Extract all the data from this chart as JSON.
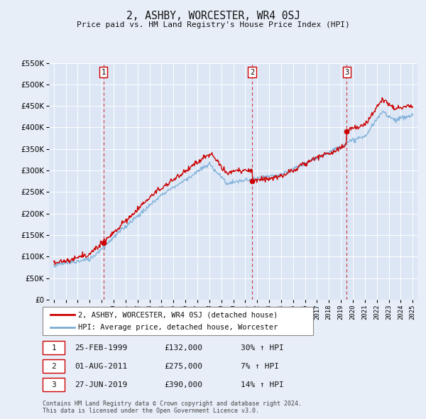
{
  "title": "2, ASHBY, WORCESTER, WR4 0SJ",
  "subtitle": "Price paid vs. HM Land Registry's House Price Index (HPI)",
  "background_color": "#e8eef8",
  "plot_bg_color": "#dce6f5",
  "line1_color": "#cc0000",
  "line2_color": "#7aaed6",
  "legend1": "2, ASHBY, WORCESTER, WR4 0SJ (detached house)",
  "legend2": "HPI: Average price, detached house, Worcester",
  "footer": "Contains HM Land Registry data © Crown copyright and database right 2024.\nThis data is licensed under the Open Government Licence v3.0.",
  "transactions": [
    {
      "num": 1,
      "date": "25-FEB-1999",
      "price": "£132,000",
      "hpi": "30% ↑ HPI",
      "year": 1999.15
    },
    {
      "num": 2,
      "date": "01-AUG-2011",
      "price": "£275,000",
      "hpi": "7% ↑ HPI",
      "year": 2011.58
    },
    {
      "num": 3,
      "date": "27-JUN-2019",
      "price": "£390,000",
      "hpi": "14% ↑ HPI",
      "year": 2019.49
    }
  ],
  "transaction_prices": [
    132000,
    275000,
    390000
  ],
  "ylim": [
    0,
    550000
  ],
  "yticks": [
    0,
    50000,
    100000,
    150000,
    200000,
    250000,
    300000,
    350000,
    400000,
    450000,
    500000,
    550000
  ],
  "xlim_start": 1994.6,
  "xlim_end": 2025.4
}
